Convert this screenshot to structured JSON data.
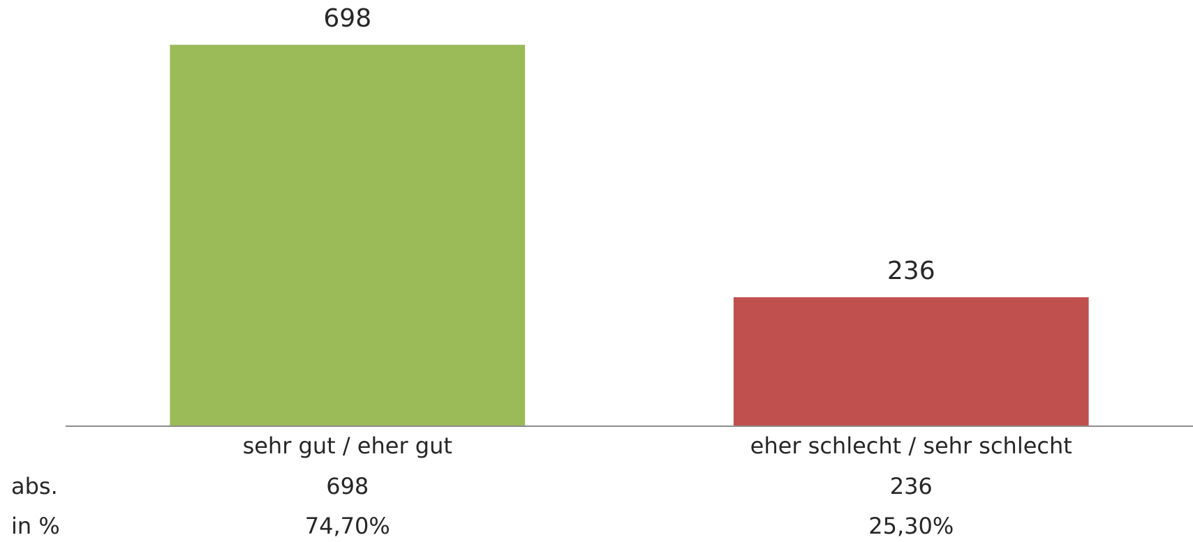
{
  "chart_data": {
    "type": "bar",
    "categories": [
      "sehr gut / eher gut",
      "eher schlecht / sehr schlecht"
    ],
    "values": [
      698,
      236
    ],
    "colors": [
      "#9bbb59",
      "#c0504d"
    ],
    "ylim": [
      0,
      780
    ],
    "data_table": {
      "rows": [
        {
          "label": "abs.",
          "values": [
            "698",
            "236"
          ]
        },
        {
          "label": "in %",
          "values": [
            "74,70%",
            "25,30%"
          ]
        }
      ]
    }
  }
}
